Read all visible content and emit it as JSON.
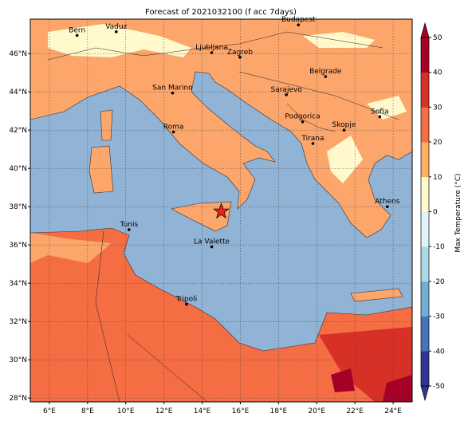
{
  "title": "Forecast of 2021032100 (f acc 7days)",
  "map": {
    "lon_range": [
      5,
      25
    ],
    "lat_range": [
      27.8,
      47.8
    ],
    "xticks": [
      {
        "value": 6,
        "label": "6°E"
      },
      {
        "value": 8,
        "label": "8°E"
      },
      {
        "value": 10,
        "label": "10°E"
      },
      {
        "value": 12,
        "label": "12°E"
      },
      {
        "value": 14,
        "label": "14°E"
      },
      {
        "value": 16,
        "label": "16°E"
      },
      {
        "value": 18,
        "label": "18°E"
      },
      {
        "value": 20,
        "label": "20°E"
      },
      {
        "value": 22,
        "label": "22°E"
      },
      {
        "value": 24,
        "label": "24°E"
      }
    ],
    "yticks": [
      {
        "value": 28,
        "label": "28°N"
      },
      {
        "value": 30,
        "label": "30°N"
      },
      {
        "value": 32,
        "label": "32°N"
      },
      {
        "value": 34,
        "label": "34°N"
      },
      {
        "value": 36,
        "label": "36°N"
      },
      {
        "value": 38,
        "label": "38°N"
      },
      {
        "value": 40,
        "label": "40°N"
      },
      {
        "value": 42,
        "label": "42°N"
      },
      {
        "value": 44,
        "label": "44°N"
      },
      {
        "value": 46,
        "label": "46°N"
      }
    ],
    "cities": [
      {
        "name": "Bern",
        "lon": 7.45,
        "lat": 46.95
      },
      {
        "name": "Vaduz",
        "lon": 9.5,
        "lat": 47.14
      },
      {
        "name": "Budapest",
        "lon": 19.04,
        "lat": 47.5
      },
      {
        "name": "Ljubljana",
        "lon": 14.5,
        "lat": 46.05
      },
      {
        "name": "Zagreb",
        "lon": 15.98,
        "lat": 45.81
      },
      {
        "name": "Belgrade",
        "lon": 20.46,
        "lat": 44.8
      },
      {
        "name": "San Marino",
        "lon": 12.45,
        "lat": 43.94
      },
      {
        "name": "Sarajevo",
        "lon": 18.41,
        "lat": 43.85
      },
      {
        "name": "Sofia",
        "lon": 23.3,
        "lat": 42.7
      },
      {
        "name": "Podgorica",
        "lon": 19.26,
        "lat": 42.44
      },
      {
        "name": "Skopje",
        "lon": 21.43,
        "lat": 42.0
      },
      {
        "name": "Roma",
        "lon": 12.5,
        "lat": 41.9
      },
      {
        "name": "Tirana",
        "lon": 19.8,
        "lat": 41.3
      },
      {
        "name": "Athens",
        "lon": 23.7,
        "lat": 38.0
      },
      {
        "name": "Tunis",
        "lon": 10.17,
        "lat": 36.8
      },
      {
        "name": "La Valette",
        "lon": 14.5,
        "lat": 35.9
      },
      {
        "name": "Tripoli",
        "lon": 13.18,
        "lat": 32.9
      }
    ],
    "marker": {
      "lon": 15.0,
      "lat": 37.75,
      "color": "#e8231c"
    }
  },
  "colorbar": {
    "label": "Max Temperature (°C)",
    "range": [
      -50,
      50
    ],
    "ticks": [
      -50,
      -40,
      -30,
      -20,
      -10,
      0,
      10,
      20,
      30,
      40,
      50
    ],
    "colors": [
      "#313695",
      "#4575b4",
      "#74add1",
      "#abd9e9",
      "#e0f3f8",
      "#fffacd",
      "#fdae61",
      "#f46d43",
      "#d73027",
      "#a50026"
    ]
  }
}
